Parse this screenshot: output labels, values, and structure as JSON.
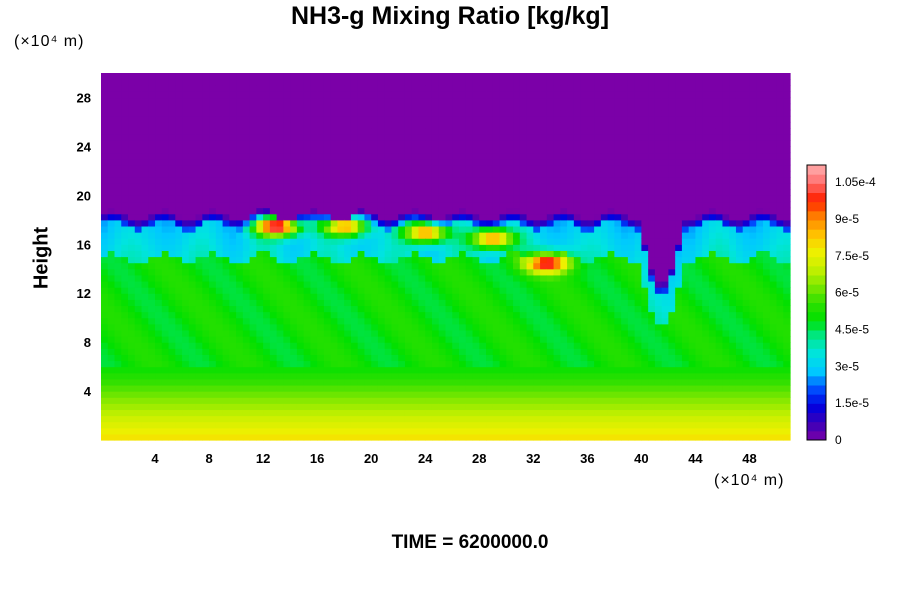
{
  "chart_data": {
    "type": "heatmap",
    "title": "NH3-g Mixing Ratio [kg/kg]",
    "ylabel": "Height",
    "x_unit": "(×10⁴ m)",
    "y_unit": "(×10⁴ m)",
    "footer": "TIME = 6200000.0",
    "xlim": [
      0,
      51
    ],
    "ylim": [
      0,
      30
    ],
    "x_ticks": [
      "4",
      "8",
      "12",
      "16",
      "20",
      "24",
      "28",
      "32",
      "36",
      "40",
      "44",
      "48"
    ],
    "y_ticks": [
      "4",
      "8",
      "12",
      "16",
      "20",
      "24",
      "28"
    ],
    "colorbar": {
      "min": 0,
      "max": 0.000112,
      "tick_labels": [
        "0",
        "1.5e-5",
        "3e-5",
        "4.5e-5",
        "6e-5",
        "7.5e-5",
        "9e-5",
        "1.05e-4"
      ],
      "tick_values": [
        0,
        1.5e-05,
        3e-05,
        4.5e-05,
        6e-05,
        7.5e-05,
        9e-05,
        0.000105
      ]
    },
    "field_summary": {
      "upper_layer_value": 0,
      "upper_layer_from_height": 19,
      "surface_value": 8e-05,
      "mid_layer_value": 5e-05,
      "cloud_top_value": 3.5e-05,
      "hot_spots": [
        {
          "x": 13,
          "y": 17.5,
          "value": 0.00011
        },
        {
          "x": 33,
          "y": 14.5,
          "value": 0.000105
        },
        {
          "x": 29,
          "y": 16.5,
          "value": 9e-05
        },
        {
          "x": 24,
          "y": 17,
          "value": 9e-05
        },
        {
          "x": 18,
          "y": 17.5,
          "value": 9e-05
        }
      ]
    },
    "colors": {
      "zero": "#7b00a8",
      "scale": [
        "#7b00a8",
        "#3a00b8",
        "#0000e0",
        "#0050ff",
        "#00c8ff",
        "#00e4e0",
        "#00e890",
        "#00e000",
        "#30e000",
        "#80e800",
        "#c8f000",
        "#f0f000",
        "#ffc000",
        "#ff8000",
        "#ff2000",
        "#ff7070",
        "#ffb0b0"
      ]
    }
  }
}
